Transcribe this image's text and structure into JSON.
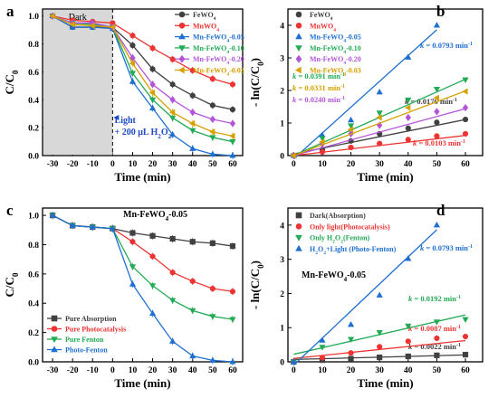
{
  "chart_data": [
    {
      "panel": "a",
      "type": "line",
      "x": [
        -30,
        -20,
        -10,
        0,
        10,
        20,
        30,
        40,
        50,
        60
      ],
      "xlim": [
        -35,
        65
      ],
      "ylim": [
        0,
        1.05
      ],
      "xticks": [
        -30,
        -20,
        -10,
        0,
        10,
        20,
        30,
        40,
        50,
        60
      ],
      "yticks": [
        0.0,
        0.2,
        0.4,
        0.6,
        0.8,
        1.0
      ],
      "xlabel": "Time (min)",
      "ylabel": "C/C",
      "ylabel_sub": "0",
      "legend_position": "top-right",
      "annotations": [
        "Dark",
        "Light",
        "+ 200 μL H",
        "2",
        "O",
        "2"
      ],
      "series": [
        {
          "name": "FeWO",
          "sub": "4",
          "color": "#404040",
          "marker": "circle",
          "values": [
            1.0,
            0.92,
            0.92,
            0.92,
            0.79,
            0.62,
            0.51,
            0.43,
            0.36,
            0.33
          ]
        },
        {
          "name": "MnWO",
          "sub": "4",
          "color": "#ee3333",
          "marker": "circle",
          "values": [
            1.0,
            0.97,
            0.96,
            0.95,
            0.86,
            0.77,
            0.69,
            0.61,
            0.55,
            0.51
          ]
        },
        {
          "name": "Mn-FeWO",
          "sub": "4",
          "suffix": "-0.05",
          "color": "#1f6fd1",
          "marker": "triangle",
          "values": [
            1.0,
            0.92,
            0.92,
            0.91,
            0.53,
            0.34,
            0.15,
            0.05,
            0.01,
            0.0
          ]
        },
        {
          "name": "Mn-FeWO",
          "sub": "4",
          "suffix": "-0.10",
          "color": "#22aa55",
          "marker": "triangle-down",
          "values": [
            1.0,
            0.95,
            0.94,
            0.92,
            0.59,
            0.4,
            0.27,
            0.18,
            0.13,
            0.1
          ]
        },
        {
          "name": "Mn-FeWO",
          "sub": "4",
          "suffix": "-0.20",
          "color": "#b455d9",
          "marker": "diamond",
          "values": [
            1.0,
            0.95,
            0.95,
            0.92,
            0.7,
            0.51,
            0.4,
            0.31,
            0.26,
            0.23
          ]
        },
        {
          "name": "Mn-FeWO",
          "sub": "4",
          "suffix": "-0.03",
          "color": "#d6a000",
          "marker": "triangle-left",
          "values": [
            1.0,
            0.94,
            0.93,
            0.92,
            0.66,
            0.45,
            0.31,
            0.23,
            0.17,
            0.14
          ]
        }
      ]
    },
    {
      "panel": "b",
      "type": "scatter",
      "x": [
        0,
        10,
        20,
        30,
        40,
        50,
        60
      ],
      "xlim": [
        -2,
        66
      ],
      "ylim": [
        0,
        4.5
      ],
      "xticks": [
        0,
        10,
        20,
        30,
        40,
        50,
        60
      ],
      "yticks": [
        0,
        1,
        2,
        3,
        4
      ],
      "xlabel": "Time (min)",
      "ylabel": "- ln(C/C",
      "ylabel_sub": "0",
      "ylabel_end": ")",
      "legend_position": "top-left",
      "series": [
        {
          "name": "FeWO",
          "sub": "4",
          "color": "#404040",
          "marker": "circle",
          "values": [
            0,
            0.19,
            0.45,
            0.67,
            0.84,
            1.02,
            1.11
          ],
          "fit": [
            0.05,
            0.0176
          ],
          "k": "k = 0.0176 min",
          "k_sup": "-1"
        },
        {
          "name": "MnWO",
          "sub": "4",
          "color": "#ee3333",
          "marker": "circle",
          "values": [
            0,
            0.11,
            0.25,
            0.37,
            0.49,
            0.6,
            0.67
          ],
          "fit": [
            0.0,
            0.0103
          ],
          "k": "k = 0.0103 min",
          "k_sup": "-1"
        },
        {
          "name": "Mn-FeWO",
          "sub": "4",
          "suffix": "-0.05",
          "color": "#1f6fd1",
          "marker": "triangle",
          "values": [
            0,
            0.63,
            1.09,
            1.95,
            3.02,
            4.0
          ],
          "fit": [
            -0.1,
            0.0793
          ],
          "fit_xmax": 50,
          "k": "k = 0.0793 min",
          "k_sup": "-1"
        },
        {
          "name": "Mn-FeWO",
          "sub": "4",
          "suffix": "-0.10",
          "color": "#22aa55",
          "marker": "triangle-down",
          "values": [
            0,
            0.53,
            0.92,
            1.31,
            1.71,
            2.04,
            2.33
          ],
          "fit": [
            0.0,
            0.0391
          ],
          "k": "k = 0.0391 min",
          "k_sup": "-1"
        },
        {
          "name": "Mn-FeWO",
          "sub": "4",
          "suffix": "-0.20",
          "color": "#b455d9",
          "marker": "diamond",
          "values": [
            0,
            0.36,
            0.67,
            0.93,
            1.17,
            1.35,
            1.47
          ],
          "fit": [
            0.0,
            0.024
          ],
          "k": "k = 0.0240 min",
          "k_sup": "-1"
        },
        {
          "name": "Mn-FeWO",
          "sub": "4",
          "suffix": "-0.03",
          "color": "#d6a000",
          "marker": "triangle-left",
          "values": [
            0,
            0.42,
            0.8,
            1.17,
            1.47,
            1.77,
            1.97
          ],
          "fit": [
            0.0,
            0.0331
          ],
          "k": "k = 0.0331 min",
          "k_sup": "-1"
        }
      ]
    },
    {
      "panel": "c",
      "type": "line",
      "x": [
        -30,
        -20,
        -10,
        0,
        10,
        20,
        30,
        40,
        50,
        60
      ],
      "xlim": [
        -35,
        65
      ],
      "ylim": [
        0,
        1.05
      ],
      "xticks": [
        -30,
        -20,
        -10,
        0,
        10,
        20,
        30,
        40,
        50,
        60
      ],
      "yticks": [
        0.0,
        0.2,
        0.4,
        0.6,
        0.8,
        1.0
      ],
      "xlabel": "Time (min)",
      "ylabel": "C/C",
      "ylabel_sub": "0",
      "legend_position": "bottom-left",
      "annotations": [
        "Mn-FeWO",
        "4",
        "-0.05"
      ],
      "series": [
        {
          "name": "Pure Absorption",
          "color": "#404040",
          "marker": "square",
          "values": [
            1.0,
            0.93,
            0.92,
            0.91,
            0.88,
            0.86,
            0.84,
            0.82,
            0.81,
            0.79
          ]
        },
        {
          "name": "Pure Photocatalysis",
          "color": "#ee3333",
          "marker": "circle",
          "values": [
            1.0,
            0.93,
            0.92,
            0.91,
            0.82,
            0.72,
            0.61,
            0.55,
            0.5,
            0.48
          ]
        },
        {
          "name": "Pure Fenton",
          "color": "#22aa55",
          "marker": "triangle-down",
          "values": [
            1.0,
            0.93,
            0.92,
            0.91,
            0.65,
            0.52,
            0.42,
            0.35,
            0.31,
            0.29
          ]
        },
        {
          "name": "Photo-Fenton",
          "color": "#1f6fd1",
          "marker": "triangle",
          "values": [
            1.0,
            0.93,
            0.92,
            0.91,
            0.53,
            0.33,
            0.14,
            0.04,
            0.01,
            0.0
          ]
        }
      ]
    },
    {
      "panel": "d",
      "type": "scatter",
      "x": [
        0,
        10,
        20,
        30,
        40,
        50,
        60
      ],
      "xlim": [
        -2,
        66
      ],
      "ylim": [
        0,
        4.5
      ],
      "xticks": [
        0,
        10,
        20,
        30,
        40,
        50,
        60
      ],
      "yticks": [
        0,
        1,
        2,
        3,
        4
      ],
      "xlabel": "Time (min)",
      "ylabel": "- ln(C/C",
      "ylabel_sub": "0",
      "ylabel_end": ")",
      "legend_position": "top-left",
      "annotations": [
        "Mn-FeWO",
        "4",
        "-0.05"
      ],
      "series": [
        {
          "name": "Dark",
          "suffix": "(Absorption)",
          "color": "#404040",
          "marker": "square",
          "values": [
            0,
            0.05,
            0.09,
            0.13,
            0.16,
            0.19,
            0.21
          ],
          "fit": [
            0.07,
            0.0022
          ],
          "k": "k = 0.0022 min",
          "k_sup": "-1"
        },
        {
          "name": "Only light",
          "suffix": "(Photocatalysis)",
          "color": "#ee3333",
          "marker": "circle",
          "values": [
            0,
            0.12,
            0.26,
            0.44,
            0.6,
            0.69,
            0.74
          ],
          "fit": [
            0.1,
            0.0087
          ],
          "k": "k = 0.0087 min",
          "k_sup": "-1"
        },
        {
          "name": "Only H",
          "sub": "2",
          "mid": "O",
          "sub2": "2",
          "suffix": "(Fenton)",
          "color": "#22aa55",
          "marker": "triangle-down",
          "values": [
            0,
            0.43,
            0.66,
            0.86,
            1.05,
            1.17,
            1.24
          ],
          "fit": [
            0.22,
            0.0192
          ],
          "k": "k = 0.0192 min",
          "k_sup": "-1"
        },
        {
          "name": "H",
          "sub": "2",
          "mid": "O",
          "sub2": "2",
          "suffix": "+Light (Photo-Fenton)",
          "color": "#1f6fd1",
          "marker": "triangle",
          "values": [
            0,
            0.63,
            1.09,
            1.95,
            3.02,
            4.0
          ],
          "fit": [
            -0.1,
            0.0793
          ],
          "fit_xmax": 50,
          "k": "k = 0.0793 min",
          "k_sup": "-1"
        }
      ]
    }
  ]
}
